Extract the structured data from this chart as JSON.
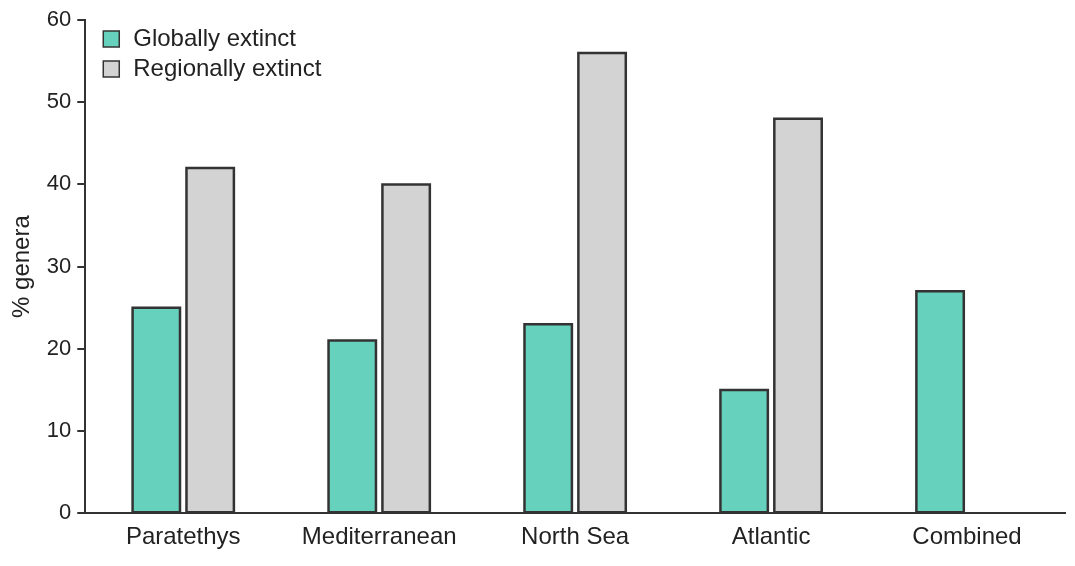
{
  "chart_data": {
    "type": "bar",
    "ylabel": "% genera",
    "categories": [
      "Paratethys",
      "Mediterranean",
      "North Sea",
      "Atlantic",
      "Combined"
    ],
    "series": [
      {
        "name": "Globally extinct",
        "color": "#66d1bc",
        "values": [
          25,
          21,
          23,
          15,
          27
        ]
      },
      {
        "name": "Regionally extinct",
        "color": "#d3d3d3",
        "values": [
          42,
          40,
          56,
          48,
          null
        ]
      }
    ],
    "ylim": [
      0,
      60
    ],
    "yticks": [
      0,
      10,
      20,
      30,
      40,
      50,
      60
    ],
    "grid": false,
    "legend": "top left"
  }
}
